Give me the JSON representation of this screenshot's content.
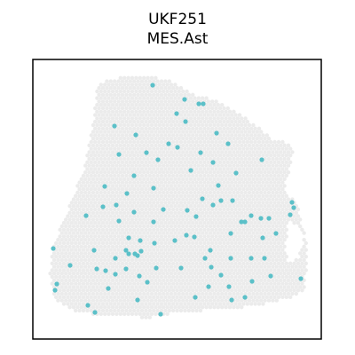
{
  "chart_data": {
    "type": "scatter",
    "title": "UKF251",
    "subtitle": "MES.Ast",
    "xlabel": "",
    "ylabel": "",
    "axes_ticks": false,
    "grid": false,
    "colors": {
      "background_spot": "#ebebeb",
      "highlight_spot": "#5bc0c8",
      "frame": "#000000"
    },
    "highlighted_points": [
      [
        172,
        96
      ],
      [
        208,
        112
      ],
      [
        224,
        117
      ],
      [
        229,
        117
      ],
      [
        199,
        128
      ],
      [
        209,
        137
      ],
      [
        129,
        142
      ],
      [
        153,
        152
      ],
      [
        244,
        150
      ],
      [
        190,
        162
      ],
      [
        257,
        162
      ],
      [
        200,
        166
      ],
      [
        134,
        174
      ],
      [
        165,
        172
      ],
      [
        226,
        172
      ],
      [
        178,
        180
      ],
      [
        240,
        183
      ],
      [
        295,
        180
      ],
      [
        266,
        195
      ],
      [
        151,
        198
      ],
      [
        215,
        192
      ],
      [
        246,
        209
      ],
      [
        118,
        210
      ],
      [
        173,
        212
      ],
      [
        143,
        218
      ],
      [
        228,
        224
      ],
      [
        249,
        226
      ],
      [
        262,
        226
      ],
      [
        131,
        231
      ],
      [
        240,
        231
      ],
      [
        329,
        228
      ],
      [
        116,
        233
      ],
      [
        151,
        239
      ],
      [
        184,
        236
      ],
      [
        211,
        237
      ],
      [
        331,
        234
      ],
      [
        97,
        243
      ],
      [
        221,
        244
      ],
      [
        272,
        250
      ],
      [
        276,
        250
      ],
      [
        283,
        243
      ],
      [
        294,
        246
      ],
      [
        303,
        246
      ],
      [
        327,
        242
      ],
      [
        134,
        249
      ],
      [
        173,
        250
      ],
      [
        260,
        263
      ],
      [
        210,
        265
      ],
      [
        311,
        263
      ],
      [
        145,
        268
      ],
      [
        158,
        271
      ],
      [
        174,
        274
      ],
      [
        197,
        271
      ],
      [
        219,
        267
      ],
      [
        296,
        268
      ],
      [
        60,
        280
      ],
      [
        106,
        282
      ],
      [
        142,
        282
      ],
      [
        145,
        286
      ],
      [
        152,
        286
      ],
      [
        159,
        283
      ],
      [
        237,
        282
      ],
      [
        155,
        288
      ],
      [
        130,
        291
      ],
      [
        231,
        291
      ],
      [
        260,
        291
      ],
      [
        283,
        291
      ],
      [
        298,
        291
      ],
      [
        79,
        299
      ],
      [
        109,
        303
      ],
      [
        176,
        302
      ],
      [
        204,
        302
      ],
      [
        238,
        301
      ],
      [
        119,
        305
      ],
      [
        142,
        303
      ],
      [
        130,
        309
      ],
      [
        157,
        311
      ],
      [
        249,
        310
      ],
      [
        305,
        311
      ],
      [
        339,
        314
      ],
      [
        64,
        320
      ],
      [
        166,
        318
      ],
      [
        284,
        317
      ],
      [
        235,
        323
      ],
      [
        258,
        323
      ],
      [
        62,
        327
      ],
      [
        122,
        325
      ],
      [
        220,
        335
      ],
      [
        276,
        335
      ],
      [
        155,
        338
      ],
      [
        261,
        338
      ],
      [
        99,
        344
      ],
      [
        107,
        352
      ],
      [
        181,
        354
      ]
    ]
  }
}
